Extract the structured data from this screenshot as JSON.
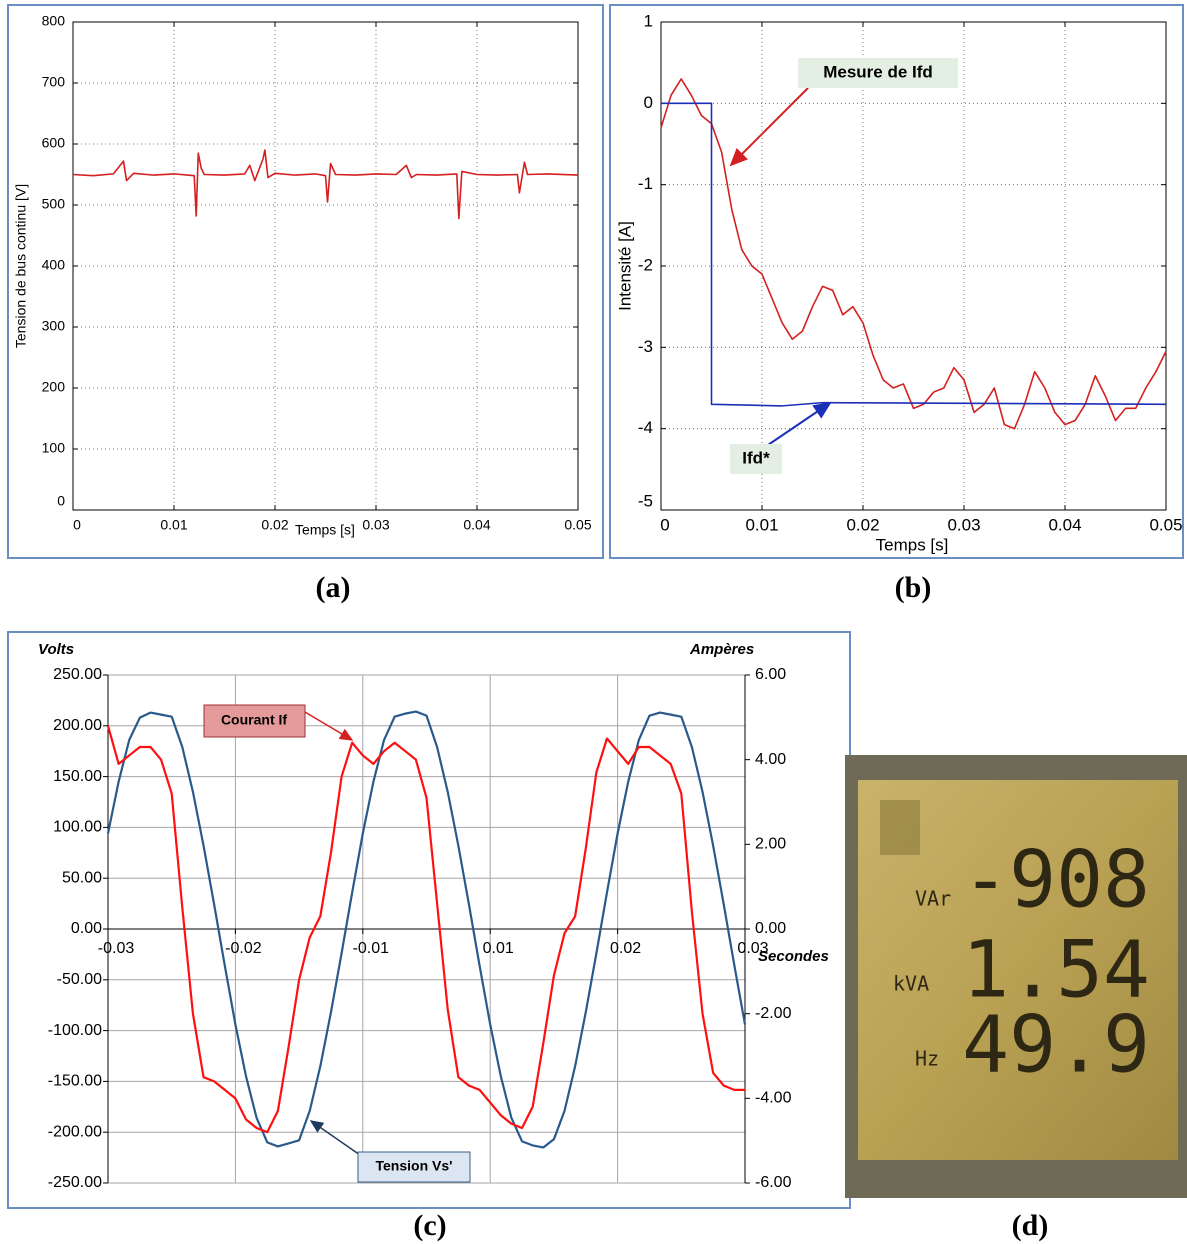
{
  "chart_data": [
    {
      "type": "line",
      "ylabel": "Tension de bus continu [V]",
      "xlabel": "Temps [s]",
      "xlim": [
        0,
        0.05
      ],
      "xticks": [
        0,
        0.01,
        0.02,
        0.03,
        0.04,
        0.05
      ],
      "ylim": [
        0,
        800
      ],
      "yticks": [
        0,
        100,
        200,
        300,
        400,
        500,
        600,
        700,
        800
      ],
      "grid": true,
      "color": "#d42020",
      "x": [
        0,
        0.002,
        0.004,
        0.005,
        0.0053,
        0.006,
        0.008,
        0.01,
        0.012,
        0.0122,
        0.0124,
        0.0127,
        0.013,
        0.015,
        0.017,
        0.0175,
        0.018,
        0.0188,
        0.019,
        0.0193,
        0.02,
        0.022,
        0.024,
        0.025,
        0.0252,
        0.0255,
        0.026,
        0.028,
        0.03,
        0.032,
        0.033,
        0.0335,
        0.034,
        0.036,
        0.038,
        0.0382,
        0.0385,
        0.04,
        0.042,
        0.044,
        0.0442,
        0.0447,
        0.045,
        0.047,
        0.05
      ],
      "values": [
        550,
        548,
        551,
        572,
        540,
        552,
        549,
        551,
        548,
        482,
        585,
        560,
        550,
        549,
        551,
        565,
        540,
        575,
        590,
        545,
        552,
        549,
        551,
        548,
        505,
        568,
        550,
        549,
        551,
        550,
        565,
        545,
        550,
        549,
        551,
        478,
        555,
        550,
        549,
        550,
        520,
        570,
        550,
        551,
        549
      ]
    },
    {
      "type": "line",
      "ylabel": "Intensité [A]",
      "xlabel": "Temps [s]",
      "xlim": [
        0,
        0.05
      ],
      "xticks": [
        0,
        0.01,
        0.02,
        0.03,
        0.04,
        0.05
      ],
      "ylim": [
        -5,
        1
      ],
      "yticks": [
        -5,
        -4,
        -3,
        -2,
        -1,
        0,
        1
      ],
      "grid": true,
      "series": [
        {
          "name": "Mesure de Ifd",
          "color": "#d42020",
          "x": [
            0,
            0.001,
            0.002,
            0.003,
            0.004,
            0.005,
            0.006,
            0.007,
            0.008,
            0.009,
            0.01,
            0.011,
            0.012,
            0.013,
            0.014,
            0.015,
            0.016,
            0.017,
            0.018,
            0.019,
            0.02,
            0.021,
            0.022,
            0.023,
            0.024,
            0.025,
            0.026,
            0.027,
            0.028,
            0.029,
            0.03,
            0.031,
            0.032,
            0.033,
            0.034,
            0.035,
            0.036,
            0.037,
            0.038,
            0.039,
            0.04,
            0.041,
            0.042,
            0.043,
            0.044,
            0.045,
            0.046,
            0.047,
            0.048,
            0.049,
            0.05
          ],
          "values": [
            -0.3,
            0.1,
            0.3,
            0.1,
            -0.15,
            -0.25,
            -0.6,
            -1.3,
            -1.8,
            -2.0,
            -2.1,
            -2.4,
            -2.7,
            -2.9,
            -2.8,
            -2.5,
            -2.25,
            -2.3,
            -2.6,
            -2.5,
            -2.7,
            -3.1,
            -3.4,
            -3.5,
            -3.45,
            -3.75,
            -3.7,
            -3.55,
            -3.5,
            -3.25,
            -3.4,
            -3.8,
            -3.7,
            -3.5,
            -3.95,
            -4.0,
            -3.7,
            -3.3,
            -3.5,
            -3.8,
            -3.95,
            -3.9,
            -3.7,
            -3.35,
            -3.6,
            -3.9,
            -3.75,
            -3.75,
            -3.5,
            -3.3,
            -3.05
          ]
        },
        {
          "name": "Ifd*",
          "color": "#1c2fb8",
          "x": [
            0,
            0.005,
            0.005,
            0.012,
            0.016,
            0.05
          ],
          "values": [
            0,
            0,
            -3.7,
            -3.72,
            -3.68,
            -3.7
          ]
        }
      ]
    },
    {
      "type": "line",
      "ylabel": "Volts",
      "y2label": "Ampères",
      "xlabel": "Secondes",
      "xlim": [
        -0.03,
        0.03
      ],
      "xticks": [
        -0.03,
        {
          "value": -0.018,
          "label": "-0.02"
        },
        {
          "value": -0.006,
          "label": "-0.01"
        },
        {
          "value": 0.006,
          "label": "0.01"
        },
        {
          "value": 0.018,
          "label": "0.02"
        },
        0.03
      ],
      "ylim": [
        -250,
        250
      ],
      "yticks": [
        {
          "value": -250,
          "label": "-250.00"
        },
        {
          "value": -200,
          "label": "-200.00"
        },
        {
          "value": -150,
          "label": "-150.00"
        },
        {
          "value": -100,
          "label": "-100.00"
        },
        {
          "value": -50,
          "label": "-50.00"
        },
        {
          "value": 0,
          "label": "0.00"
        },
        {
          "value": 50,
          "label": "50.00"
        },
        {
          "value": 100,
          "label": "100.00"
        },
        {
          "value": 150,
          "label": "150.00"
        },
        {
          "value": 200,
          "label": "200.00"
        },
        {
          "value": 250,
          "label": "250.00"
        }
      ],
      "y2lim": [
        -6,
        6
      ],
      "y2ticks": [
        {
          "value": -6,
          "label": "-6.00"
        },
        {
          "value": -4,
          "label": "-4.00"
        },
        {
          "value": -2,
          "label": "-2.00"
        },
        {
          "value": 0,
          "label": "0.00"
        },
        {
          "value": 2,
          "label": "2.00"
        },
        {
          "value": 4,
          "label": "4.00"
        },
        {
          "value": 6,
          "label": "6.00"
        }
      ],
      "grid": true,
      "x": [
        -0.03,
        -0.029,
        -0.028,
        -0.027,
        -0.026,
        -0.025,
        -0.024,
        -0.023,
        -0.022,
        -0.021,
        -0.02,
        -0.019,
        -0.018,
        -0.017,
        -0.016,
        -0.015,
        -0.014,
        -0.013,
        -0.012,
        -0.011,
        -0.01,
        -0.009,
        -0.008,
        -0.007,
        -0.006,
        -0.005,
        -0.004,
        -0.003,
        -0.002,
        -0.001,
        0,
        0.001,
        0.002,
        0.003,
        0.004,
        0.005,
        0.006,
        0.007,
        0.008,
        0.009,
        0.01,
        0.011,
        0.012,
        0.013,
        0.014,
        0.015,
        0.016,
        0.017,
        0.018,
        0.019,
        0.02,
        0.021,
        0.022,
        0.023,
        0.024,
        0.025,
        0.026,
        0.027,
        0.028,
        0.029,
        0.03
      ],
      "series": [
        {
          "name": "Tension Vs'",
          "color": "#2a5a8c",
          "values": [
            94,
            145,
            186,
            208,
            213,
            211,
            209,
            179,
            135,
            82,
            24,
            -36,
            -94,
            -145,
            -186,
            -210,
            -214,
            -211,
            -208,
            -179,
            -135,
            -82,
            -24,
            36,
            94,
            145,
            186,
            209,
            212,
            214,
            210,
            179,
            135,
            82,
            24,
            -36,
            -94,
            -145,
            -186,
            -209,
            -213,
            -215,
            -207,
            -179,
            -135,
            -82,
            -24,
            36,
            94,
            145,
            186,
            210,
            213,
            211,
            209,
            179,
            135,
            82,
            24,
            -36,
            -94
          ]
        },
        {
          "name": "Courant If",
          "color": "#ff1010",
          "axis": "y2",
          "values": [
            4.8,
            3.9,
            4.1,
            4.3,
            4.3,
            4.0,
            3.2,
            0.5,
            -2.0,
            -3.5,
            -3.6,
            -3.8,
            -4.0,
            -4.5,
            -4.7,
            -4.8,
            -4.3,
            -2.8,
            -1.2,
            -0.2,
            0.3,
            1.8,
            3.6,
            4.4,
            4.1,
            3.9,
            4.2,
            4.4,
            4.2,
            4.0,
            3.1,
            0.6,
            -1.9,
            -3.5,
            -3.7,
            -3.8,
            -4.1,
            -4.4,
            -4.6,
            -4.7,
            -4.2,
            -2.7,
            -1.1,
            -0.1,
            0.3,
            1.9,
            3.7,
            4.5,
            4.2,
            3.9,
            4.3,
            4.3,
            4.1,
            3.9,
            3.2,
            0.4,
            -2.0,
            -3.4,
            -3.7,
            -3.8,
            -3.8
          ]
        }
      ]
    }
  ],
  "display": {
    "rows": [
      {
        "unit": "VAr",
        "reading": "-908"
      },
      {
        "unit": "kVA",
        "reading": "1.54"
      },
      {
        "unit": "Hz",
        "reading": "49.9"
      }
    ]
  },
  "captions": [
    "(a)",
    "(b)",
    "(c)",
    "(d)"
  ]
}
